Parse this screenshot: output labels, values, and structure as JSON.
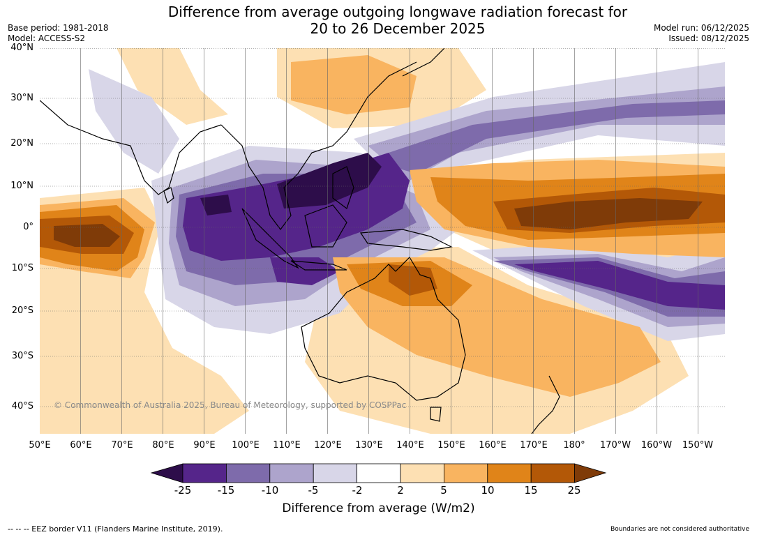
{
  "title": {
    "line1": "Difference from average outgoing longwave radiation forecast for",
    "line2": "20 to 26 December 2025"
  },
  "meta": {
    "base_period": "Base period: 1981-2018",
    "model": "Model: ACCESS-S2",
    "model_run": "Model run: 06/12/2025",
    "issued": "Issued: 08/12/2025"
  },
  "map": {
    "lat_labels": [
      "40°N",
      "30°N",
      "20°N",
      "10°N",
      "0°",
      "10°S",
      "20°S",
      "30°S",
      "40°S"
    ],
    "lon_labels": [
      "50°E",
      "60°E",
      "70°E",
      "80°E",
      "90°E",
      "100°E",
      "110°E",
      "120°E",
      "130°E",
      "140°E",
      "150°E",
      "160°E",
      "170°E",
      "180°",
      "170°W",
      "160°W",
      "150°W"
    ],
    "copyright": "© Commonwealth of Australia 2025, Bureau of Meteorology, supported by COSPPac"
  },
  "colorbar": {
    "label": "Difference from average (W/m2)",
    "ticks": [
      "-25",
      "-15",
      "-10",
      "-5",
      "-2",
      "2",
      "5",
      "10",
      "15",
      "25"
    ],
    "colors": {
      "lt25": "#2d0d4a",
      "m25_m15": "#55258a",
      "m15_m10": "#7e6bab",
      "m10_m5": "#ada4cc",
      "m5_m2": "#d8d6e8",
      "m2_2": "#ffffff",
      "p2_5": "#fde0b3",
      "p5_10": "#f9b460",
      "p10_15": "#e08419",
      "p15_25": "#b35807",
      "gt25": "#7f3b08"
    }
  },
  "footer": {
    "eez": "--  --  -- EEZ border V11 (Flanders Marine Institute, 2019).",
    "disclaimer": "Boundaries are not considered authoritative"
  }
}
